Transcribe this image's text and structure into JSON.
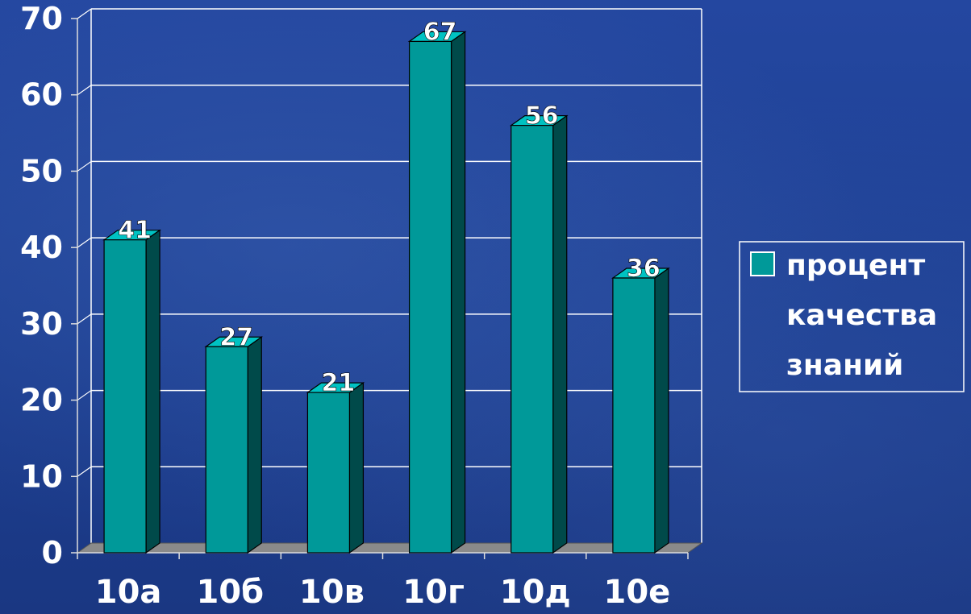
{
  "chart_data": {
    "type": "bar",
    "style": "3d-column",
    "categories": [
      "10а",
      "10б",
      "10в",
      "10г",
      "10д",
      "10е"
    ],
    "series": [
      {
        "name": "процент качества знаний",
        "values": [
          41,
          27,
          21,
          67,
          56,
          36
        ]
      }
    ],
    "value_labels": [
      "41",
      "27",
      "21",
      "67",
      "56",
      "36"
    ],
    "ylim": [
      0,
      70
    ],
    "yticks": [
      0,
      10,
      20,
      30,
      40,
      50,
      60,
      70
    ],
    "ytick_labels": [
      "0",
      "10",
      "20",
      "30",
      "40",
      "50",
      "60",
      "70"
    ],
    "grid": true,
    "legend": {
      "position": "right",
      "lines": [
        "процент",
        "качества",
        "знаний"
      ]
    },
    "title": "",
    "xlabel": "",
    "ylabel": ""
  },
  "colors": {
    "bar_front": "#009999",
    "bar_side": "#004a4a",
    "bar_top": "#00c2c2",
    "floor": "#8a8a8a",
    "gridline": "#ffffff",
    "text": "#ffffff",
    "legend_swatch": "#009999"
  }
}
